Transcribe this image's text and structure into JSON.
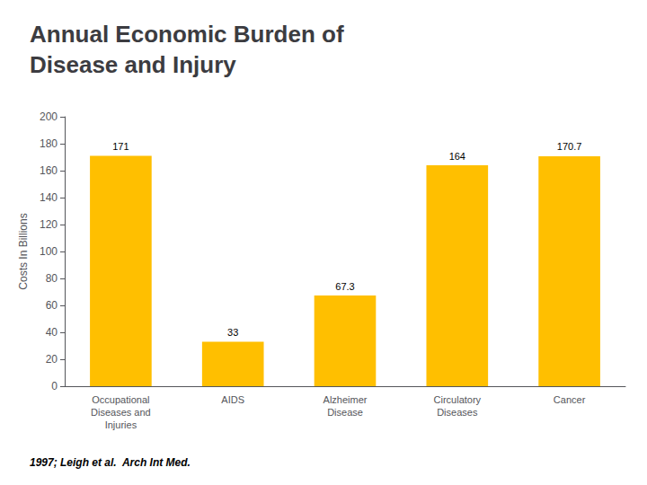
{
  "chart_data": {
    "type": "bar",
    "title": "Annual Economic Burden of\nDisease and Injury",
    "subtitle": "1997; Leigh et al.  Arch Int Med.",
    "categories": [
      "Occupational\nDiseases and\nInjuries",
      "AIDS",
      "Alzheimer\nDisease",
      "Circulatory\nDiseases",
      "Cancer"
    ],
    "values": [
      171,
      33,
      67.3,
      164,
      170.7
    ],
    "color": "#FFBF00",
    "ylabel": "Costs In Billions",
    "ylim": [
      0,
      200
    ],
    "yticks": [
      0,
      20,
      40,
      60,
      80,
      100,
      120,
      140,
      160,
      180,
      200
    ],
    "grid": false,
    "data_labels": true
  }
}
